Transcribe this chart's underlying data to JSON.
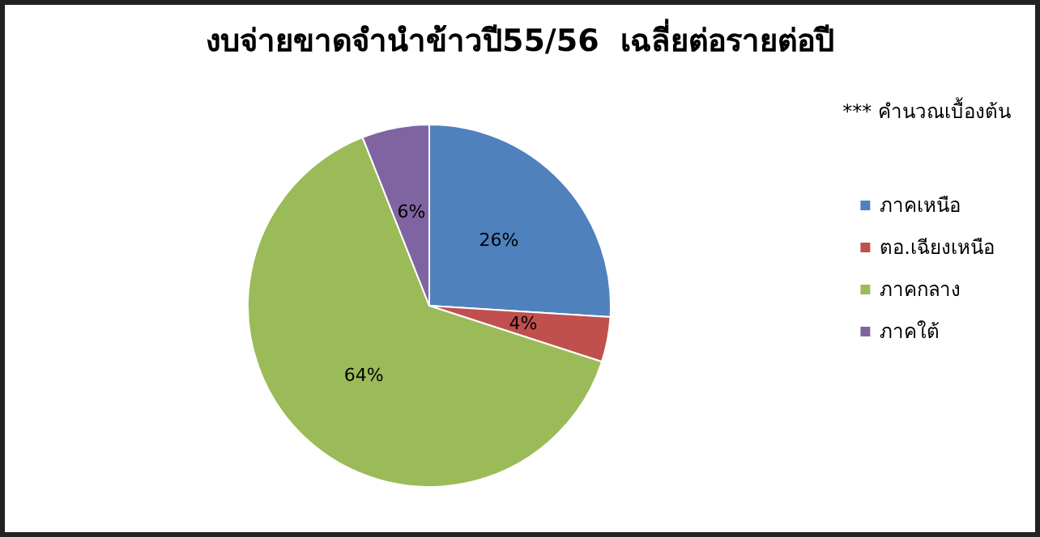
{
  "chart_data": {
    "type": "pie",
    "title": "งบจ่ายขาดจำนำข้าวปี55/56  เฉลี่ยต่อรายต่อปี",
    "annotations": [
      "*** คำนวณเบื้องต้น"
    ],
    "categories": [
      "ภาคเหนือ",
      "ตอ.เฉียงเหนือ",
      "ภาคกลาง",
      "ภาคใต้"
    ],
    "values": [
      26,
      4,
      64,
      6
    ],
    "value_labels": [
      "26%",
      "4%",
      "64%",
      "6%"
    ],
    "colors": [
      "#4f81bd",
      "#c0504d",
      "#9bbb59",
      "#8064a2"
    ],
    "legend": "right"
  }
}
